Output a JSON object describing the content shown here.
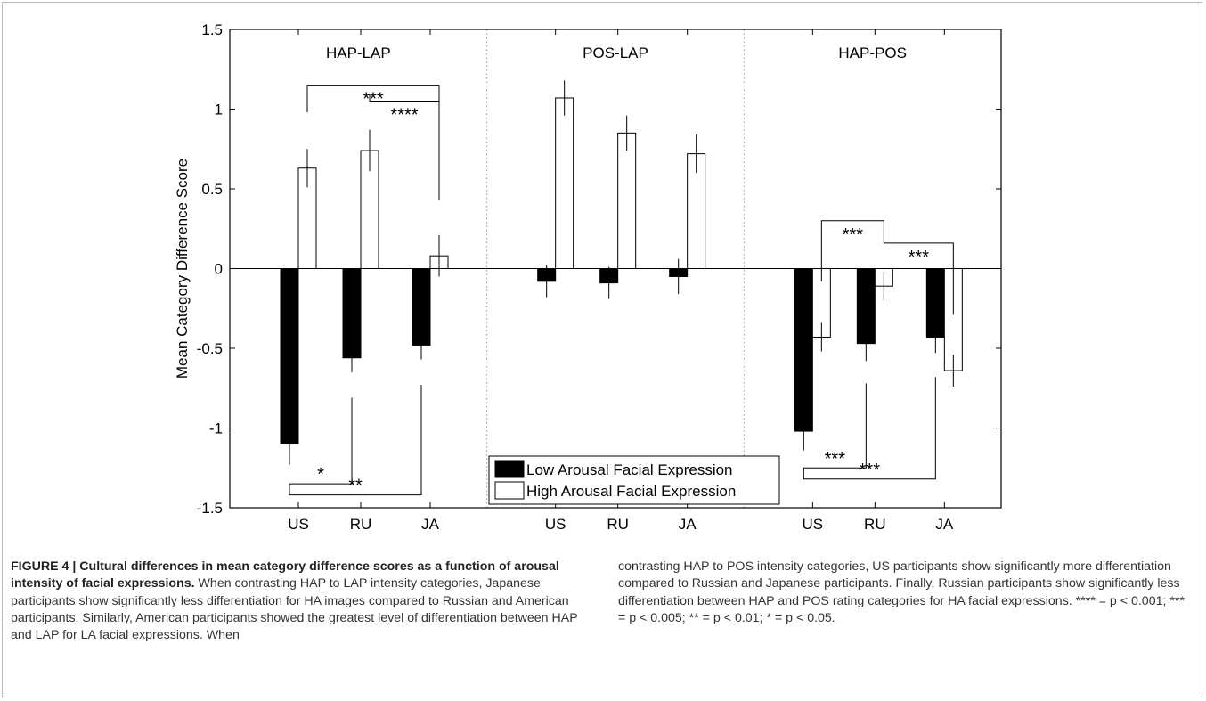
{
  "chart_data": {
    "type": "bar",
    "ylabel": "Mean Category Difference Score",
    "ylim": [
      -1.5,
      1.5
    ],
    "yticks": [
      "-1.5",
      "-1",
      "-0.5",
      "0",
      "0.5",
      "1",
      "1.5"
    ],
    "panels": [
      {
        "title": "HAP-LAP",
        "categories": [
          "US",
          "RU",
          "JA"
        ],
        "series": [
          {
            "name": "Low Arousal Facial Expression",
            "values": [
              -1.1,
              -0.56,
              -0.48
            ],
            "errors": [
              0.13,
              0.09,
              0.09
            ]
          },
          {
            "name": "High Arousal Facial Expression",
            "values": [
              0.63,
              0.74,
              0.08
            ],
            "errors": [
              0.12,
              0.13,
              0.13
            ]
          }
        ]
      },
      {
        "title": "POS-LAP",
        "categories": [
          "US",
          "RU",
          "JA"
        ],
        "series": [
          {
            "name": "Low Arousal Facial Expression",
            "values": [
              -0.08,
              -0.09,
              -0.05
            ],
            "errors": [
              0.1,
              0.1,
              0.11
            ]
          },
          {
            "name": "High Arousal Facial Expression",
            "values": [
              1.07,
              0.85,
              0.72
            ],
            "errors": [
              0.11,
              0.11,
              0.12
            ]
          }
        ]
      },
      {
        "title": "HAP-POS",
        "categories": [
          "US",
          "RU",
          "JA"
        ],
        "series": [
          {
            "name": "Low Arousal Facial Expression",
            "values": [
              -1.02,
              -0.47,
              -0.43
            ],
            "errors": [
              0.12,
              0.11,
              0.1
            ]
          },
          {
            "name": "High Arousal Facial Expression",
            "values": [
              -0.43,
              -0.11,
              -0.64
            ],
            "errors": [
              0.09,
              0.09,
              0.1
            ]
          }
        ]
      }
    ],
    "significance": [
      {
        "panel": 0,
        "label": "***",
        "from": [
          "US",
          "high"
        ],
        "to": [
          "JA",
          "high"
        ],
        "level": 1.15
      },
      {
        "panel": 0,
        "label": "****",
        "from": [
          "RU",
          "high"
        ],
        "to": [
          "JA",
          "high"
        ],
        "level": 1.05
      },
      {
        "panel": 0,
        "label": "*",
        "from": [
          "US",
          "low"
        ],
        "to": [
          "RU",
          "low"
        ],
        "level": -1.35
      },
      {
        "panel": 0,
        "label": "**",
        "from": [
          "US",
          "low"
        ],
        "to": [
          "JA",
          "low"
        ],
        "level": -1.42
      },
      {
        "panel": 2,
        "label": "***",
        "from": [
          "US",
          "high"
        ],
        "to": [
          "RU",
          "high"
        ],
        "level": 0.3
      },
      {
        "panel": 2,
        "label": "***",
        "from": [
          "RU",
          "high"
        ],
        "to": [
          "JA",
          "high"
        ],
        "level": 0.16
      },
      {
        "panel": 2,
        "label": "***",
        "from": [
          "US",
          "low"
        ],
        "to": [
          "RU",
          "low"
        ],
        "level": -1.25
      },
      {
        "panel": 2,
        "label": "***",
        "from": [
          "US",
          "low"
        ],
        "to": [
          "JA",
          "low"
        ],
        "level": -1.32
      }
    ],
    "legend": {
      "placement": "bottom-center",
      "entries": [
        "Low Arousal Facial Expression",
        "High Arousal Facial Expression"
      ]
    },
    "colors": {
      "low": "#000000",
      "high": "#ffffff",
      "frame": "#000000",
      "divider": "#999999"
    }
  },
  "caption": {
    "figure_label": "FIGURE 4 | Cultural differences in mean category difference scores as a function of arousal intensity of facial expressions.",
    "left_text": "When contrasting HAP to LAP intensity categories, Japanese participants show significantly less differentiation for HA images compared to Russian and American participants. Similarly, American participants showed the greatest level of differentiation between HAP and LAP for LA facial expressions. When",
    "right_text": "contrasting HAP to POS intensity categories, US participants show significantly more differentiation compared to Russian and Japanese participants. Finally, Russian participants show significantly less differentiation between HAP and POS rating categories for HA facial expressions. **** = p < 0.001; *** = p < 0.005; ** = p < 0.01; * = p < 0.05."
  }
}
